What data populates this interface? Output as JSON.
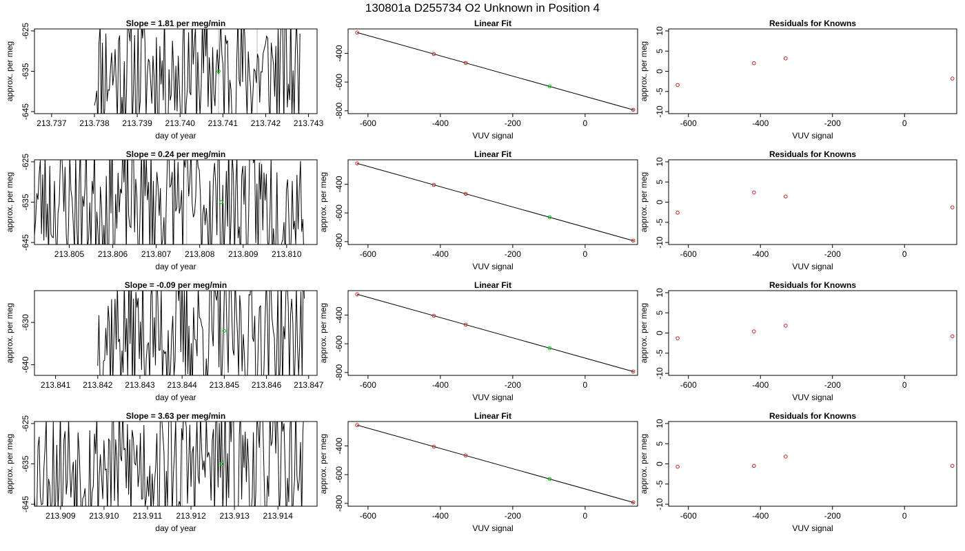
{
  "figure": {
    "title": "130801a      D255734   O2 Unknown in Position  4"
  },
  "chart_data": [
    {
      "type": "line",
      "row": 1,
      "panel": "time-series",
      "title": "Slope =  1.81  per meg/min",
      "xlabel": "day of year",
      "ylabel": "approx. per meg",
      "xlim": [
        213.7366,
        213.7432
      ],
      "ylim": [
        -645.5,
        -624.5
      ],
      "xticks": [
        "213.737",
        "213.738",
        "213.739",
        "213.740",
        "213.741",
        "213.742",
        "213.743"
      ],
      "yticks": [
        "-625",
        "-635",
        "-645"
      ],
      "data_start": 213.738,
      "data_end": 213.7428,
      "n_points": 180,
      "seed": 11,
      "vlines": [
        213.7409,
        213.7418
      ],
      "vline_color": "#bbbbbb",
      "highlight": {
        "x": 213.7409,
        "y": -635,
        "color": "#00cc00"
      }
    },
    {
      "type": "scatter",
      "row": 1,
      "panel": "linear-fit",
      "title": "Linear Fit",
      "xlabel": "VUV signal",
      "ylabel": "",
      "xlim": [
        -655,
        145
      ],
      "ylim": [
        -820,
        -230
      ],
      "xticks": [
        "-600",
        "-400",
        "-200",
        "0"
      ],
      "yticks": [
        "-400",
        "-600",
        "-800"
      ],
      "fit_line": [
        [
          -630,
          -255
        ],
        [
          135,
          -795
        ]
      ],
      "points": [
        {
          "x": -630,
          "y": -255,
          "color": "#cc2222"
        },
        {
          "x": -418,
          "y": -405,
          "color": "#cc2222"
        },
        {
          "x": -330,
          "y": -467,
          "color": "#cc2222"
        },
        {
          "x": -98,
          "y": -630,
          "color": "#00cc00"
        },
        {
          "x": 133,
          "y": -793,
          "color": "#cc2222"
        }
      ]
    },
    {
      "type": "scatter",
      "row": 1,
      "panel": "residuals",
      "title": "Residuals for Knowns",
      "xlabel": "VUV signal",
      "ylabel": "approx. per meg",
      "xlim": [
        -655,
        145
      ],
      "ylim": [
        -10.5,
        10.5
      ],
      "xticks": [
        "-600",
        "-400",
        "-200",
        "0"
      ],
      "yticks": [
        "10",
        "5",
        "0",
        "-5",
        "-10"
      ],
      "points": [
        {
          "x": -630,
          "y": -3.4,
          "color": "#cc2222"
        },
        {
          "x": -418,
          "y": 2.0,
          "color": "#cc2222"
        },
        {
          "x": -330,
          "y": 3.2,
          "color": "#cc2222"
        },
        {
          "x": 133,
          "y": -1.8,
          "color": "#cc2222"
        }
      ]
    },
    {
      "type": "line",
      "row": 2,
      "panel": "time-series",
      "title": "Slope =  0.24  per meg/min",
      "xlabel": "day of year",
      "ylabel": "approx. per meg",
      "xlim": [
        213.8042,
        213.8107
      ],
      "ylim": [
        -645.5,
        -624.5
      ],
      "xticks": [
        "213.805",
        "213.806",
        "213.807",
        "213.808",
        "213.809",
        "213.810"
      ],
      "yticks": [
        "-625",
        "-635",
        "-645"
      ],
      "data_start": 213.8042,
      "data_end": 213.8104,
      "n_points": 230,
      "seed": 23,
      "vlines": [
        213.8077,
        213.8094
      ],
      "vline_color": "#bbbbbb",
      "highlight": {
        "x": 213.8085,
        "y": -635,
        "color": "#00cc00"
      }
    },
    {
      "type": "scatter",
      "row": 2,
      "panel": "linear-fit",
      "title": "Linear Fit",
      "xlabel": "VUV signal",
      "ylabel": "approx. per meg",
      "xlim": [
        -655,
        145
      ],
      "ylim": [
        -820,
        -230
      ],
      "xticks": [
        "-600",
        "-400",
        "-200",
        "0"
      ],
      "yticks": [
        "-400",
        "-600",
        "-800"
      ],
      "fit_line": [
        [
          -630,
          -255
        ],
        [
          135,
          -795
        ]
      ],
      "points": [
        {
          "x": -630,
          "y": -255,
          "color": "#cc2222"
        },
        {
          "x": -418,
          "y": -405,
          "color": "#cc2222"
        },
        {
          "x": -330,
          "y": -467,
          "color": "#cc2222"
        },
        {
          "x": -98,
          "y": -630,
          "color": "#00cc00"
        },
        {
          "x": 133,
          "y": -793,
          "color": "#cc2222"
        }
      ]
    },
    {
      "type": "scatter",
      "row": 2,
      "panel": "residuals",
      "title": "Residuals for Knowns",
      "xlabel": "VUV signal",
      "ylabel": "approx. per meg",
      "xlim": [
        -655,
        145
      ],
      "ylim": [
        -10.5,
        10.5
      ],
      "xticks": [
        "-600",
        "-400",
        "-200",
        "0"
      ],
      "yticks": [
        "10",
        "5",
        "0",
        "-5",
        "-10"
      ],
      "points": [
        {
          "x": -630,
          "y": -2.6,
          "color": "#cc2222"
        },
        {
          "x": -418,
          "y": 2.4,
          "color": "#cc2222"
        },
        {
          "x": -330,
          "y": 1.4,
          "color": "#cc2222"
        },
        {
          "x": 133,
          "y": -1.3,
          "color": "#cc2222"
        }
      ]
    },
    {
      "type": "line",
      "row": 3,
      "panel": "time-series",
      "title": "Slope =  -0.09  per meg/min",
      "xlabel": "day of year",
      "ylabel": "approx. per meg",
      "xlim": [
        213.8405,
        213.8472
      ],
      "ylim": [
        -642.5,
        -622.5
      ],
      "xticks": [
        "213.841",
        "213.842",
        "213.843",
        "213.844",
        "213.845",
        "213.846",
        "213.847"
      ],
      "yticks": [
        "-630",
        "-640"
      ],
      "data_start": 213.842,
      "data_end": 213.8469,
      "n_points": 180,
      "seed": 37,
      "vlines": [
        213.845
      ],
      "vline_color": "#bbbbbb",
      "highlight": {
        "x": 213.845,
        "y": -632,
        "color": "#00cc00"
      }
    },
    {
      "type": "scatter",
      "row": 3,
      "panel": "linear-fit",
      "title": "Linear Fit",
      "xlabel": "VUV signal",
      "ylabel": "approx. per meg",
      "xlim": [
        -655,
        145
      ],
      "ylim": [
        -820,
        -230
      ],
      "xticks": [
        "-600",
        "-400",
        "-200",
        "0"
      ],
      "yticks": [
        "-400",
        "-600",
        "-800"
      ],
      "fit_line": [
        [
          -630,
          -255
        ],
        [
          135,
          -795
        ]
      ],
      "points": [
        {
          "x": -630,
          "y": -255,
          "color": "#cc2222"
        },
        {
          "x": -418,
          "y": -405,
          "color": "#cc2222"
        },
        {
          "x": -330,
          "y": -467,
          "color": "#cc2222"
        },
        {
          "x": -98,
          "y": -630,
          "color": "#00cc00"
        },
        {
          "x": 133,
          "y": -793,
          "color": "#cc2222"
        }
      ]
    },
    {
      "type": "scatter",
      "row": 3,
      "panel": "residuals",
      "title": "Residuals for Knowns",
      "xlabel": "VUV signal",
      "ylabel": "approx. per meg",
      "xlim": [
        -655,
        145
      ],
      "ylim": [
        -10.5,
        10.5
      ],
      "xticks": [
        "-600",
        "-400",
        "-200",
        "0"
      ],
      "yticks": [
        "10",
        "5",
        "0",
        "-5",
        "-10"
      ],
      "points": [
        {
          "x": -630,
          "y": -1.3,
          "color": "#cc2222"
        },
        {
          "x": -418,
          "y": 0.4,
          "color": "#cc2222"
        },
        {
          "x": -330,
          "y": 1.8,
          "color": "#cc2222"
        },
        {
          "x": 133,
          "y": -0.8,
          "color": "#cc2222"
        }
      ]
    },
    {
      "type": "line",
      "row": 4,
      "panel": "time-series",
      "title": "Slope =  3.63  per meg/min",
      "xlabel": "day of year",
      "ylabel": "approx. per meg",
      "xlim": [
        213.9084,
        213.9149
      ],
      "ylim": [
        -645.5,
        -624.5
      ],
      "xticks": [
        "213.909",
        "213.910",
        "213.911",
        "213.912",
        "213.913",
        "213.914"
      ],
      "yticks": [
        "-625",
        "-635",
        "-645"
      ],
      "data_start": 213.9084,
      "data_end": 213.9146,
      "n_points": 230,
      "seed": 53,
      "vlines": [
        213.9118,
        213.9136
      ],
      "vline_color": "#bbbbbb",
      "highlight": {
        "x": 213.9127,
        "y": -635,
        "color": "#00cc00"
      }
    },
    {
      "type": "scatter",
      "row": 4,
      "panel": "linear-fit",
      "title": "Linear Fit",
      "xlabel": "VUV signal",
      "ylabel": "approx. per meg",
      "xlim": [
        -655,
        145
      ],
      "ylim": [
        -820,
        -230
      ],
      "xticks": [
        "-600",
        "-400",
        "-200",
        "0"
      ],
      "yticks": [
        "-400",
        "-600",
        "-800"
      ],
      "fit_line": [
        [
          -630,
          -255
        ],
        [
          135,
          -795
        ]
      ],
      "points": [
        {
          "x": -630,
          "y": -255,
          "color": "#cc2222"
        },
        {
          "x": -418,
          "y": -405,
          "color": "#cc2222"
        },
        {
          "x": -330,
          "y": -467,
          "color": "#cc2222"
        },
        {
          "x": -98,
          "y": -630,
          "color": "#00cc00"
        },
        {
          "x": 133,
          "y": -793,
          "color": "#cc2222"
        }
      ]
    },
    {
      "type": "scatter",
      "row": 4,
      "panel": "residuals",
      "title": "Residuals for Knowns",
      "xlabel": "VUV signal",
      "ylabel": "approx. per meg",
      "xlim": [
        -655,
        145
      ],
      "ylim": [
        -10.5,
        10.5
      ],
      "xticks": [
        "-600",
        "-400",
        "-200",
        "0"
      ],
      "yticks": [
        "10",
        "5",
        "0",
        "-5",
        "-10"
      ],
      "points": [
        {
          "x": -630,
          "y": -0.7,
          "color": "#cc2222"
        },
        {
          "x": -418,
          "y": -0.5,
          "color": "#cc2222"
        },
        {
          "x": -330,
          "y": 1.8,
          "color": "#cc2222"
        },
        {
          "x": 133,
          "y": -0.5,
          "color": "#cc2222"
        }
      ]
    }
  ]
}
